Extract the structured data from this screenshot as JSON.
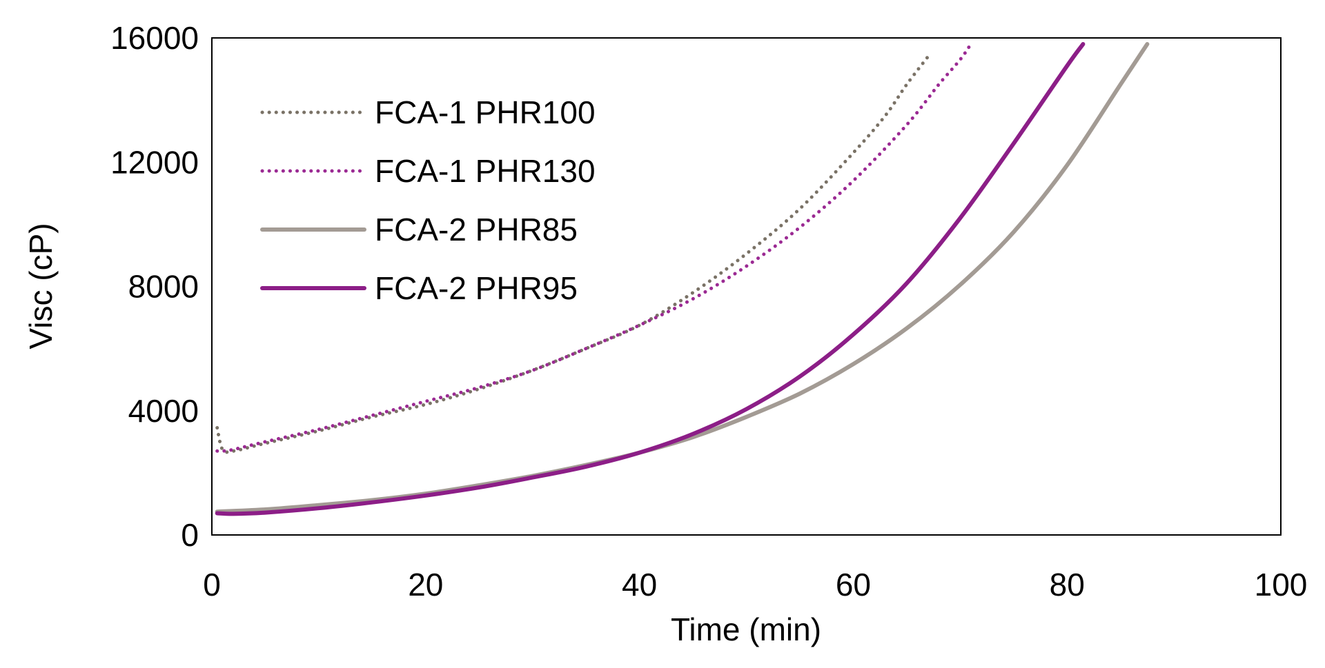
{
  "chart_data": {
    "type": "line",
    "title": "",
    "xlabel": "Time (min)",
    "ylabel": "Visc (cP)",
    "xlim": [
      0,
      100
    ],
    "ylim": [
      0,
      16000
    ],
    "x_ticks": [
      0,
      20,
      40,
      60,
      80,
      100
    ],
    "y_ticks": [
      0,
      4000,
      8000,
      12000,
      16000
    ],
    "x_tick_labels": [
      "0",
      "20",
      "40",
      "60",
      "80",
      "100"
    ],
    "y_tick_labels": [
      "0",
      "4000",
      "8000",
      "12000",
      "16000"
    ],
    "grid": false,
    "legend_position": "top-left",
    "series": [
      {
        "name": "FCA-1 PHR100",
        "color": "#7a7266",
        "style": "dotted",
        "x": [
          0.5,
          1,
          2,
          5,
          10,
          15,
          20,
          25,
          30,
          35,
          40,
          45,
          50,
          55,
          60,
          63,
          65,
          67
        ],
        "y": [
          3450,
          2750,
          2700,
          2950,
          3350,
          3800,
          4200,
          4700,
          5300,
          6000,
          6750,
          7800,
          9050,
          10500,
          12300,
          13500,
          14500,
          15400
        ]
      },
      {
        "name": "FCA-1 PHR130",
        "color": "#9b2a93",
        "style": "dotted",
        "x": [
          0.5,
          1,
          2,
          5,
          10,
          15,
          20,
          25,
          30,
          35,
          40,
          45,
          50,
          55,
          60,
          65,
          68,
          70,
          71
        ],
        "y": [
          2700,
          2700,
          2750,
          3000,
          3400,
          3850,
          4300,
          4750,
          5300,
          6000,
          6750,
          7600,
          8650,
          9900,
          11400,
          13200,
          14500,
          15300,
          15800
        ]
      },
      {
        "name": "FCA-2 PHR85",
        "color": "#a39b94",
        "style": "solid",
        "x": [
          0.5,
          5,
          10,
          15,
          20,
          25,
          30,
          35,
          40,
          45,
          50,
          55,
          60,
          65,
          70,
          75,
          80,
          85,
          87.5
        ],
        "y": [
          750,
          820,
          960,
          1120,
          1330,
          1600,
          1900,
          2250,
          2650,
          3150,
          3800,
          4550,
          5500,
          6650,
          8050,
          9750,
          11900,
          14500,
          15800
        ]
      },
      {
        "name": "FCA-2 PHR95",
        "color": "#8c1e87",
        "style": "solid",
        "x": [
          0.5,
          2,
          5,
          10,
          15,
          20,
          25,
          30,
          35,
          40,
          45,
          50,
          55,
          60,
          65,
          70,
          75,
          80,
          81.5
        ],
        "y": [
          700,
          680,
          720,
          860,
          1050,
          1270,
          1530,
          1850,
          2200,
          2650,
          3250,
          4050,
          5100,
          6450,
          8100,
          10200,
          12600,
          15100,
          15800
        ]
      }
    ]
  }
}
